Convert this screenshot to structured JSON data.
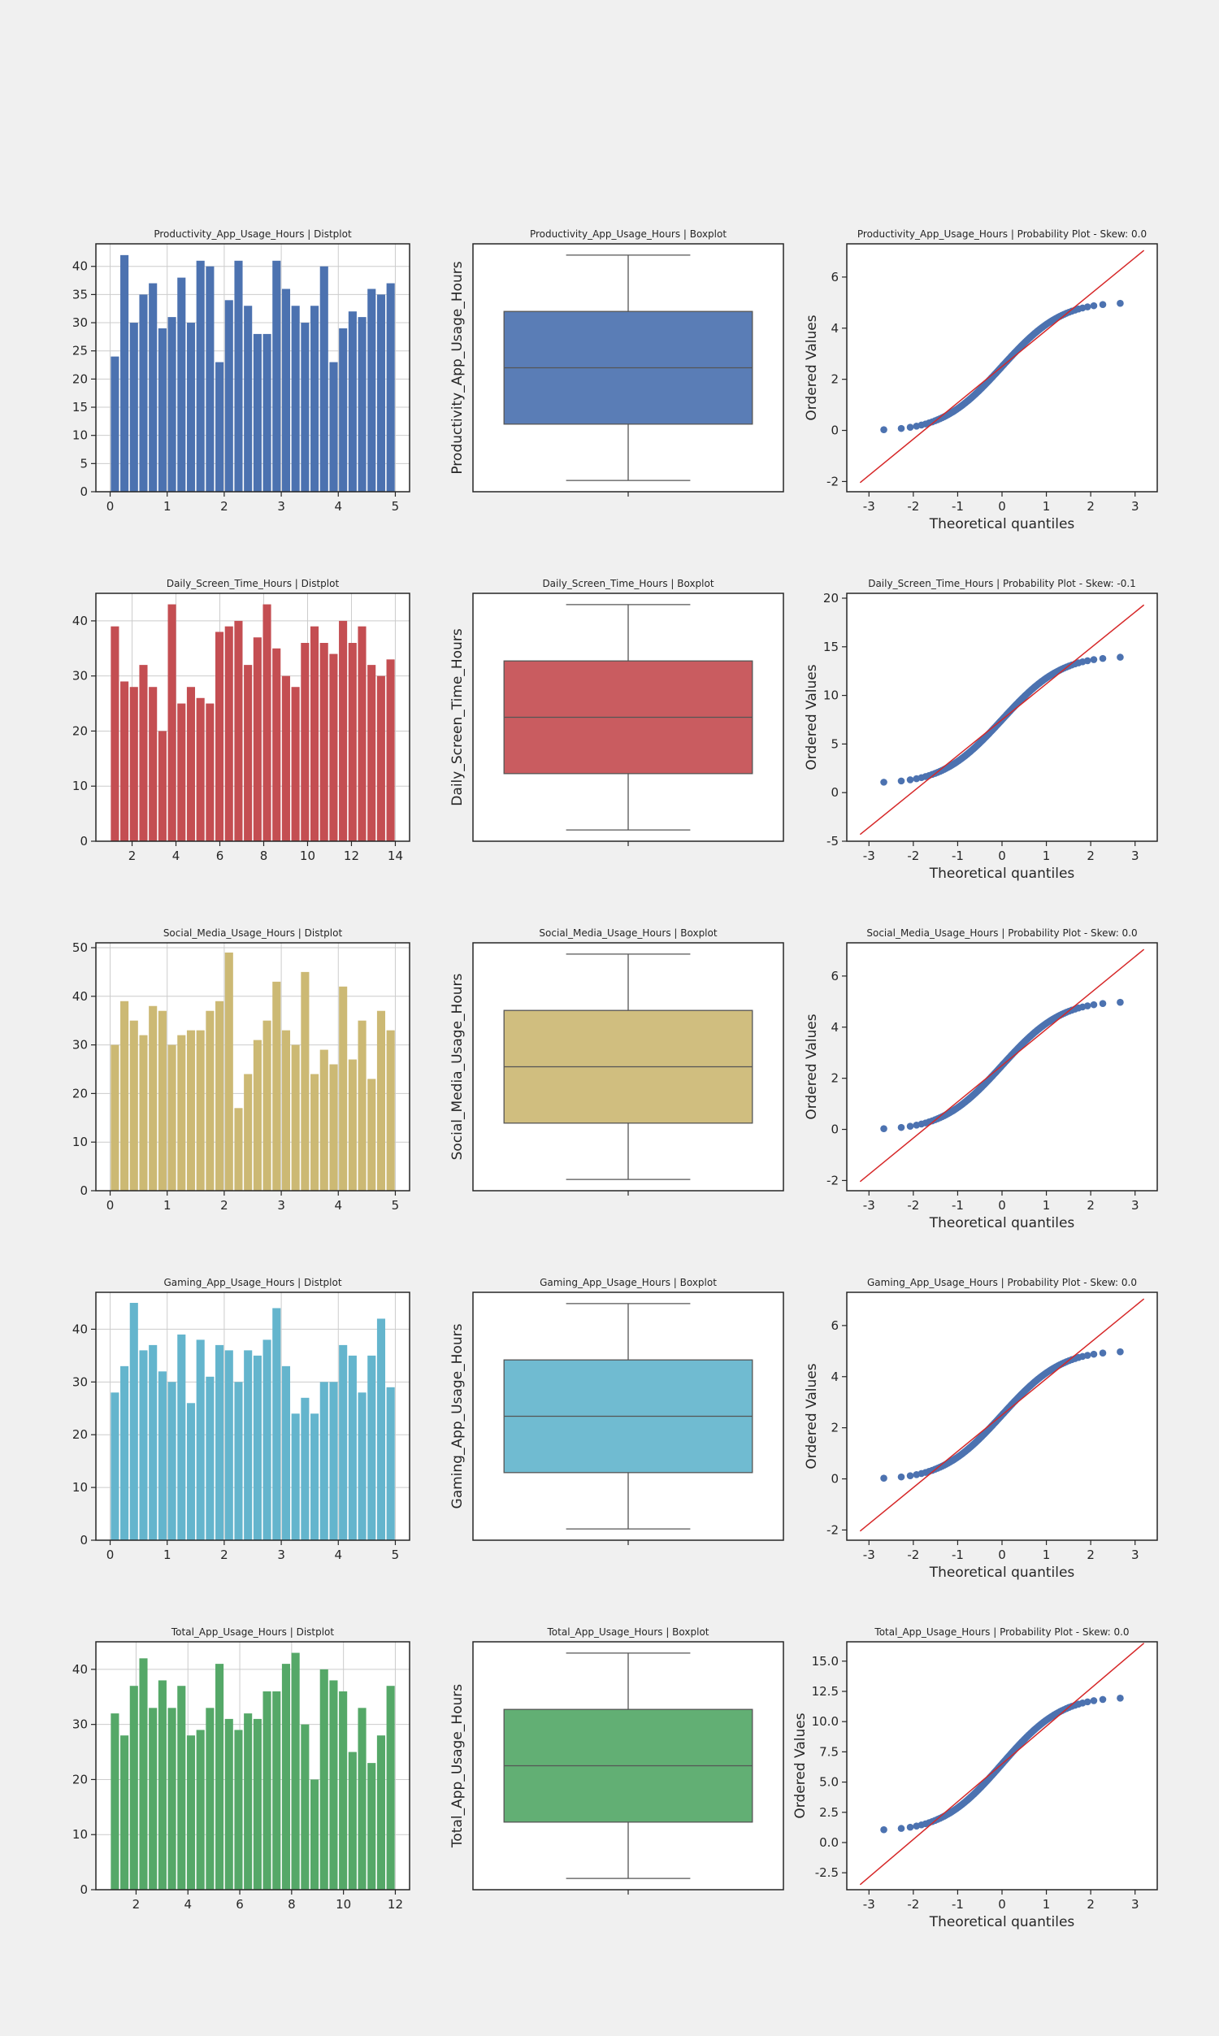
{
  "figure": {
    "background": "#f0f0f0"
  },
  "charts": [
    {
      "var": "Productivity_App_Usage_Hours",
      "color": "#4c72b0",
      "hist": {
        "type": "bar",
        "title": "Productivity_App_Usage_Hours | Distplot",
        "xlim": [
          -0.25,
          5.25
        ],
        "ylim": [
          0,
          44
        ],
        "xticks": [
          0,
          1,
          2,
          3,
          4,
          5
        ],
        "yticks": [
          0,
          5,
          10,
          15,
          20,
          25,
          30,
          35,
          40
        ],
        "x_start": 0,
        "bin_width": 0.1667,
        "values": [
          24,
          42,
          30,
          35,
          37,
          29,
          31,
          38,
          30,
          41,
          40,
          23,
          34,
          41,
          33,
          28,
          28,
          41,
          36,
          33,
          30,
          33,
          40,
          23,
          29,
          32,
          31,
          36,
          35,
          37
        ]
      },
      "box": {
        "type": "box",
        "title": "Productivity_App_Usage_Hours | Boxplot",
        "ylabel": "Productivity_App_Usage_Hours",
        "ylim": [
          -0.25,
          5.25
        ],
        "min": 0.0,
        "q1": 1.25,
        "median": 2.5,
        "q3": 3.75,
        "max": 5.0
      },
      "prob": {
        "type": "scatter",
        "title": "Productivity_App_Usage_Hours | Probability Plot - Skew: 0.0",
        "xlabel": "Theoretical quantiles",
        "ylabel": "Ordered Values",
        "xlim": [
          -3.5,
          3.5
        ],
        "ylim": [
          -2.4,
          7.3
        ],
        "xticks": [
          -3,
          -2,
          -1,
          0,
          1,
          2,
          3
        ],
        "yticks": [
          -2,
          0,
          2,
          4,
          6
        ],
        "lo": 0,
        "hi": 5,
        "fit": {
          "slope": 1.42,
          "intercept": 2.5
        }
      }
    },
    {
      "var": "Daily_Screen_Time_Hours",
      "color": "#c44e52",
      "hist": {
        "type": "bar",
        "title": "Daily_Screen_Time_Hours | Distplot",
        "xlim": [
          0.35,
          14.65
        ],
        "ylim": [
          0,
          45
        ],
        "xticks": [
          2,
          4,
          6,
          8,
          10,
          12,
          14
        ],
        "yticks": [
          0,
          10,
          20,
          30,
          40
        ],
        "x_start": 1,
        "bin_width": 0.4333,
        "values": [
          39,
          29,
          28,
          32,
          28,
          20,
          43,
          25,
          28,
          26,
          25,
          38,
          39,
          40,
          32,
          37,
          43,
          35,
          30,
          28,
          36,
          39,
          36,
          34,
          40,
          36,
          39,
          32,
          30,
          33
        ]
      },
      "box": {
        "type": "box",
        "title": "Daily_Screen_Time_Hours | Boxplot",
        "ylabel": "Daily_Screen_Time_Hours",
        "ylim": [
          0.35,
          14.65
        ],
        "min": 1.0,
        "q1": 4.25,
        "median": 7.5,
        "q3": 10.75,
        "max": 14.0
      },
      "prob": {
        "type": "scatter",
        "title": "Daily_Screen_Time_Hours | Probability Plot - Skew: -0.1",
        "xlabel": "Theoretical quantiles",
        "ylabel": "Ordered Values",
        "xlim": [
          -3.5,
          3.5
        ],
        "ylim": [
          -5,
          20.5
        ],
        "xticks": [
          -3,
          -2,
          -1,
          0,
          1,
          2,
          3
        ],
        "yticks": [
          -5,
          0,
          5,
          10,
          15,
          20
        ],
        "lo": 1,
        "hi": 14,
        "fit": {
          "slope": 3.69,
          "intercept": 7.5
        }
      }
    },
    {
      "var": "Social_Media_Usage_Hours",
      "color": "#ccb974",
      "hist": {
        "type": "bar",
        "title": "Social_Media_Usage_Hours | Distplot",
        "xlim": [
          -0.25,
          5.25
        ],
        "ylim": [
          0,
          51
        ],
        "xticks": [
          0,
          1,
          2,
          3,
          4,
          5
        ],
        "yticks": [
          0,
          10,
          20,
          30,
          40,
          50
        ],
        "x_start": 0,
        "bin_width": 0.1667,
        "values": [
          30,
          39,
          35,
          32,
          38,
          37,
          30,
          32,
          33,
          33,
          37,
          39,
          49,
          17,
          24,
          31,
          35,
          43,
          33,
          30,
          45,
          24,
          29,
          26,
          42,
          27,
          35,
          23,
          37,
          33
        ]
      },
      "box": {
        "type": "box",
        "title": "Social_Media_Usage_Hours | Boxplot",
        "ylabel": "Social_Media_Usage_Hours",
        "ylim": [
          -0.25,
          5.25
        ],
        "min": 0.0,
        "q1": 1.25,
        "median": 2.5,
        "q3": 3.75,
        "max": 5.0
      },
      "prob": {
        "type": "scatter",
        "title": "Social_Media_Usage_Hours | Probability Plot - Skew: 0.0",
        "xlabel": "Theoretical quantiles",
        "ylabel": "Ordered Values",
        "xlim": [
          -3.5,
          3.5
        ],
        "ylim": [
          -2.4,
          7.3
        ],
        "xticks": [
          -3,
          -2,
          -1,
          0,
          1,
          2,
          3
        ],
        "yticks": [
          -2,
          0,
          2,
          4,
          6
        ],
        "lo": 0,
        "hi": 5,
        "fit": {
          "slope": 1.42,
          "intercept": 2.5
        }
      }
    },
    {
      "var": "Gaming_App_Usage_Hours",
      "color": "#64b5cd",
      "hist": {
        "type": "bar",
        "title": "Gaming_App_Usage_Hours | Distplot",
        "xlim": [
          -0.25,
          5.25
        ],
        "ylim": [
          0,
          47
        ],
        "xticks": [
          0,
          1,
          2,
          3,
          4,
          5
        ],
        "yticks": [
          0,
          10,
          20,
          30,
          40
        ],
        "x_start": 0,
        "bin_width": 0.1667,
        "values": [
          28,
          33,
          45,
          36,
          37,
          32,
          30,
          39,
          26,
          38,
          31,
          37,
          36,
          30,
          36,
          35,
          38,
          44,
          33,
          24,
          27,
          24,
          30,
          30,
          37,
          35,
          28,
          35,
          42,
          29
        ]
      },
      "box": {
        "type": "box",
        "title": "Gaming_App_Usage_Hours | Boxplot",
        "ylabel": "Gaming_App_Usage_Hours",
        "ylim": [
          -0.25,
          5.25
        ],
        "min": 0.0,
        "q1": 1.25,
        "median": 2.5,
        "q3": 3.75,
        "max": 5.0
      },
      "prob": {
        "type": "scatter",
        "title": "Gaming_App_Usage_Hours | Probability Plot - Skew: 0.0",
        "xlabel": "Theoretical quantiles",
        "ylabel": "Ordered Values",
        "xlim": [
          -3.5,
          3.5
        ],
        "ylim": [
          -2.4,
          7.3
        ],
        "xticks": [
          -3,
          -2,
          -1,
          0,
          1,
          2,
          3
        ],
        "yticks": [
          -2,
          0,
          2,
          4,
          6
        ],
        "lo": 0,
        "hi": 5,
        "fit": {
          "slope": 1.42,
          "intercept": 2.5
        }
      }
    },
    {
      "var": "Total_App_Usage_Hours",
      "color": "#55a868",
      "hist": {
        "type": "bar",
        "title": "Total_App_Usage_Hours | Distplot",
        "xlim": [
          0.45,
          12.55
        ],
        "ylim": [
          0,
          45
        ],
        "xticks": [
          2,
          4,
          6,
          8,
          10,
          12
        ],
        "yticks": [
          0,
          10,
          20,
          30,
          40
        ],
        "x_start": 1,
        "bin_width": 0.3667,
        "values": [
          32,
          28,
          37,
          42,
          33,
          38,
          33,
          37,
          28,
          29,
          33,
          41,
          31,
          29,
          32,
          31,
          36,
          36,
          41,
          43,
          30,
          20,
          40,
          38,
          36,
          25,
          33,
          23,
          28,
          37
        ]
      },
      "box": {
        "type": "box",
        "title": "Total_App_Usage_Hours | Boxplot",
        "ylabel": "Total_App_Usage_Hours",
        "ylim": [
          0.45,
          12.55
        ],
        "min": 1.0,
        "q1": 3.75,
        "median": 6.5,
        "q3": 9.25,
        "max": 12.0
      },
      "prob": {
        "type": "scatter",
        "title": "Total_App_Usage_Hours | Probability Plot - Skew: 0.0",
        "xlabel": "Theoretical quantiles",
        "ylabel": "Ordered Values",
        "xlim": [
          -3.5,
          3.5
        ],
        "ylim": [
          -3.9,
          16.6
        ],
        "xticks": [
          -3,
          -2,
          -1,
          0,
          1,
          2,
          3
        ],
        "yticks": [
          -2.5,
          0.0,
          2.5,
          5.0,
          7.5,
          10.0,
          12.5,
          15.0
        ],
        "ytick_decimals": 1,
        "lo": 1,
        "hi": 12,
        "fit": {
          "slope": 3.12,
          "intercept": 6.5
        }
      }
    }
  ],
  "prob_style": {
    "marker_color": "#4c72b0",
    "line_color": "#d62728"
  },
  "style": {
    "grid_color": "#cccccc",
    "axis_color": "#262626",
    "box_line_color": "#555555"
  }
}
